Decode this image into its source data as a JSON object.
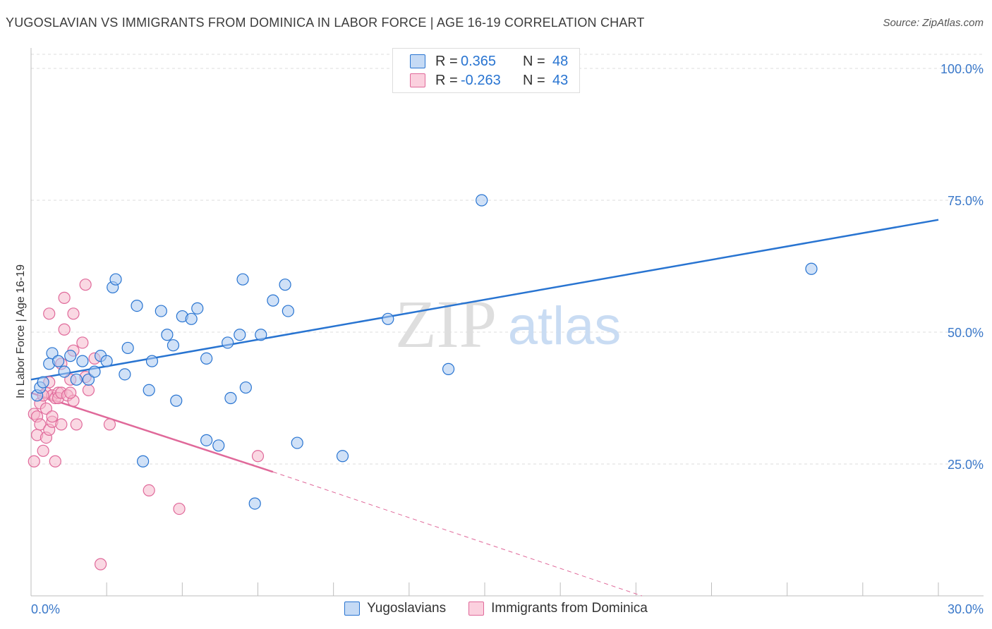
{
  "title": "YUGOSLAVIAN VS IMMIGRANTS FROM DOMINICA IN LABOR FORCE | AGE 16-19 CORRELATION CHART",
  "source": "Source: ZipAtlas.com",
  "watermark": {
    "zip": "ZIP",
    "atlas": "atlas"
  },
  "legend": {
    "r_label": "R =",
    "n_label": "N =",
    "series": [
      {
        "name": "Yugoslavians",
        "r": "0.365",
        "n": "48",
        "color": "#2874d1",
        "fill": "#a9c8f0"
      },
      {
        "name": "Immigrants from Dominica",
        "r": "-0.263",
        "n": "43",
        "color": "#e0699a",
        "fill": "#f6b8cc"
      }
    ]
  },
  "chart_data": {
    "type": "scatter",
    "title": "YUGOSLAVIAN VS IMMIGRANTS FROM DOMINICA IN LABOR FORCE | AGE 16-19 CORRELATION CHART",
    "xlabel": "",
    "ylabel": "In Labor Force | Age 16-19",
    "xlim": [
      0,
      30
    ],
    "ylim": [
      0,
      100
    ],
    "x_tick_labels": {
      "min": "0.0%",
      "max": "30.0%"
    },
    "y_ticks": [
      {
        "value": 25,
        "label": "25.0%"
      },
      {
        "value": 50,
        "label": "50.0%"
      },
      {
        "value": 75,
        "label": "75.0%"
      },
      {
        "value": 100,
        "label": "100.0%"
      }
    ],
    "series": [
      {
        "name": "Yugoslavians",
        "points": [
          [
            0.2,
            38.0
          ],
          [
            0.3,
            39.5
          ],
          [
            0.4,
            40.5
          ],
          [
            0.6,
            44.0
          ],
          [
            0.7,
            46.0
          ],
          [
            0.9,
            44.5
          ],
          [
            1.1,
            42.5
          ],
          [
            1.3,
            45.5
          ],
          [
            1.5,
            41.0
          ],
          [
            1.7,
            44.5
          ],
          [
            1.9,
            41.0
          ],
          [
            2.1,
            42.5
          ],
          [
            2.3,
            45.5
          ],
          [
            2.5,
            44.5
          ],
          [
            2.7,
            58.5
          ],
          [
            2.8,
            60.0
          ],
          [
            3.1,
            42.0
          ],
          [
            3.2,
            47.0
          ],
          [
            3.5,
            55.0
          ],
          [
            3.7,
            25.5
          ],
          [
            3.9,
            39.0
          ],
          [
            4.0,
            44.5
          ],
          [
            4.3,
            54.0
          ],
          [
            4.5,
            49.5
          ],
          [
            4.7,
            47.5
          ],
          [
            4.8,
            37.0
          ],
          [
            5.0,
            53.0
          ],
          [
            5.3,
            52.5
          ],
          [
            5.5,
            54.5
          ],
          [
            5.8,
            45.0
          ],
          [
            5.8,
            29.5
          ],
          [
            6.2,
            28.5
          ],
          [
            6.5,
            48.0
          ],
          [
            6.6,
            37.5
          ],
          [
            6.9,
            49.5
          ],
          [
            7.0,
            60.0
          ],
          [
            7.1,
            39.5
          ],
          [
            7.4,
            17.5
          ],
          [
            7.6,
            49.5
          ],
          [
            8.0,
            56.0
          ],
          [
            8.4,
            59.0
          ],
          [
            8.5,
            54.0
          ],
          [
            8.8,
            29.0
          ],
          [
            10.3,
            26.5
          ],
          [
            11.8,
            52.5
          ],
          [
            13.8,
            43.0
          ],
          [
            14.9,
            75.0
          ],
          [
            25.8,
            62.0
          ]
        ],
        "trendline": {
          "x0": 0,
          "y0": 41.0,
          "x1": 30,
          "y1": 71.3
        }
      },
      {
        "name": "Immigrants from Dominica",
        "points": [
          [
            0.1,
            34.5
          ],
          [
            0.1,
            25.5
          ],
          [
            0.2,
            30.5
          ],
          [
            0.2,
            34.0
          ],
          [
            0.3,
            36.5
          ],
          [
            0.3,
            32.5
          ],
          [
            0.4,
            27.5
          ],
          [
            0.5,
            38.5
          ],
          [
            0.5,
            30.0
          ],
          [
            0.5,
            35.5
          ],
          [
            0.6,
            31.5
          ],
          [
            0.6,
            53.5
          ],
          [
            0.7,
            33.0
          ],
          [
            0.7,
            34.0
          ],
          [
            0.7,
            38.0
          ],
          [
            0.8,
            37.5
          ],
          [
            0.8,
            25.5
          ],
          [
            0.9,
            38.5
          ],
          [
            0.9,
            37.5
          ],
          [
            1.0,
            44.0
          ],
          [
            1.0,
            32.5
          ],
          [
            1.0,
            38.5
          ],
          [
            1.1,
            56.5
          ],
          [
            1.1,
            50.5
          ],
          [
            1.2,
            38.0
          ],
          [
            1.3,
            41.0
          ],
          [
            1.4,
            53.5
          ],
          [
            1.4,
            37.0
          ],
          [
            1.4,
            46.5
          ],
          [
            1.5,
            32.5
          ],
          [
            1.7,
            48.0
          ],
          [
            1.8,
            41.5
          ],
          [
            1.8,
            59.0
          ],
          [
            1.9,
            39.0
          ],
          [
            2.1,
            45.0
          ],
          [
            2.3,
            6.0
          ],
          [
            2.6,
            32.5
          ],
          [
            3.9,
            20.0
          ],
          [
            4.9,
            16.5
          ],
          [
            7.5,
            26.5
          ],
          [
            0.4,
            38.0
          ],
          [
            0.6,
            40.5
          ],
          [
            1.3,
            38.5
          ]
        ],
        "trendline": {
          "x0": 0,
          "y0": 38.5,
          "x1": 8.0,
          "y1": 23.5,
          "dashed_to_x": 20.2,
          "dashed_to_y": 0
        }
      }
    ]
  }
}
